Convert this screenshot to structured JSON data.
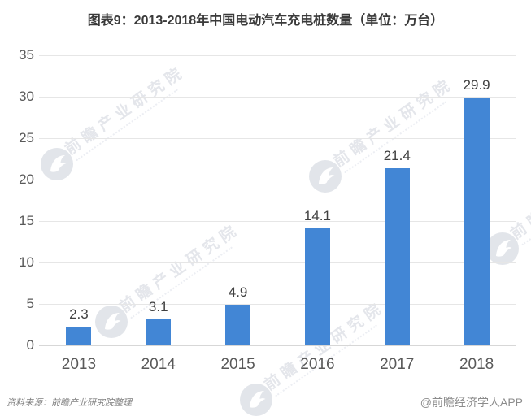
{
  "title": "图表9：2013-2018年中国电动汽车充电桩数量（单位：万台）",
  "source_note": "资料来源：前瞻产业研究院整理",
  "credit": "@前瞻经济学人APP",
  "watermark": {
    "brand": "前瞻产业研究院"
  },
  "colors": {
    "bar": "#4286d5",
    "gridline": "#e6e6e6",
    "zero_axis": "#d7d7d7",
    "title_text": "#3a3a3a",
    "tick_text": "#595959",
    "value_text": "#404040",
    "watermark_text": "#e4e6eb",
    "watermark_logo": "#e2e5ea",
    "source_text": "#7f7f7f",
    "credit_text": "#8c8c8c"
  },
  "chart_data": {
    "type": "bar",
    "title": "图表9：2013-2018年中国电动汽车充电桩数量（单位：万台）",
    "unit": "万台",
    "categories": [
      "2013",
      "2014",
      "2015",
      "2016",
      "2017",
      "2018"
    ],
    "values": [
      2.3,
      3.1,
      4.9,
      14.1,
      21.4,
      29.9
    ],
    "value_labels": [
      "2.3",
      "3.1",
      "4.9",
      "14.1",
      "21.4",
      "29.9"
    ],
    "xlabel": "",
    "ylabel": "",
    "ylim": [
      0,
      35
    ],
    "yticks": [
      0,
      5,
      10,
      15,
      20,
      25,
      30,
      35
    ],
    "grid": true,
    "legend": false,
    "bar_color": "#4286d5"
  }
}
